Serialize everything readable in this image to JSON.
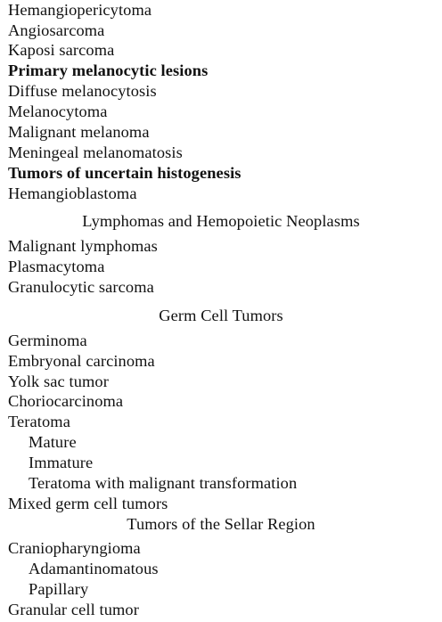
{
  "lines": [
    {
      "text": "Hemangiopericytoma",
      "style": "item"
    },
    {
      "text": "Angiosarcoma",
      "style": "item"
    },
    {
      "text": "Kaposi sarcoma",
      "style": "item"
    },
    {
      "text": "Primary melanocytic lesions",
      "style": "bold"
    },
    {
      "text": "Diffuse melanocytosis",
      "style": "item"
    },
    {
      "text": "Melanocytoma",
      "style": "item"
    },
    {
      "text": "Malignant melanoma",
      "style": "item"
    },
    {
      "text": "Meningeal melanomatosis",
      "style": "item"
    },
    {
      "text": "Tumors of uncertain histogenesis",
      "style": "bold"
    },
    {
      "text": "Hemangioblastoma",
      "style": "item"
    },
    {
      "text": "Lymphomas and Hemopoietic Neoplasms",
      "style": "heading"
    },
    {
      "text": "Malignant lymphomas",
      "style": "item"
    },
    {
      "text": "Plasmacytoma",
      "style": "item"
    },
    {
      "text": "Granulocytic sarcoma",
      "style": "item"
    },
    {
      "text": "Germ Cell Tumors",
      "style": "heading"
    },
    {
      "text": "Germinoma",
      "style": "item"
    },
    {
      "text": "Embryonal carcinoma",
      "style": "item"
    },
    {
      "text": "Yolk sac tumor",
      "style": "item"
    },
    {
      "text": "Choriocarcinoma",
      "style": "item"
    },
    {
      "text": "Teratoma",
      "style": "item"
    },
    {
      "text": "Mature",
      "style": "sub"
    },
    {
      "text": "Immature",
      "style": "sub"
    },
    {
      "text": "Teratoma with malignant transformation",
      "style": "sub"
    },
    {
      "text": "Mixed germ cell tumors",
      "style": "item"
    },
    {
      "text": "Tumors of the Sellar Region",
      "style": "heading"
    },
    {
      "text": "Craniopharyngioma",
      "style": "item"
    },
    {
      "text": "Adamantinomatous",
      "style": "sub"
    },
    {
      "text": "Papillary",
      "style": "sub"
    },
    {
      "text": "Granular cell tumor",
      "style": "item"
    }
  ]
}
